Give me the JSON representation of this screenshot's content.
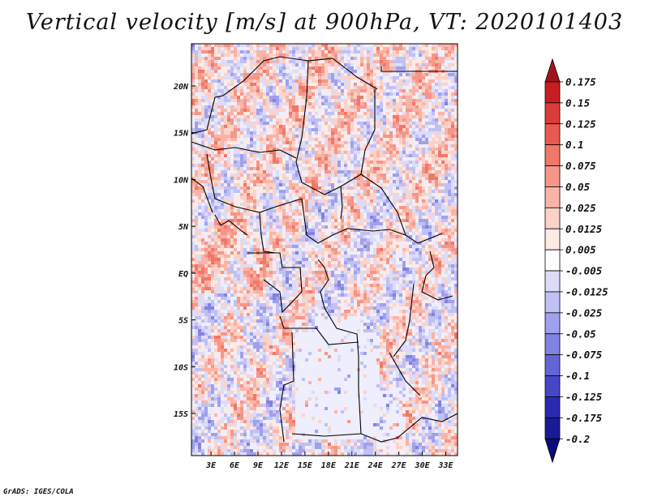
{
  "chart_data": {
    "type": "heatmap",
    "title": "Vertical velocity [m/s] at 900hPa, VT: 2020101403",
    "variable": "Vertical velocity",
    "units": "m/s",
    "level": "900hPa",
    "valid_time": "2020101403",
    "x_ticks": [
      "3E",
      "6E",
      "9E",
      "12E",
      "15E",
      "18E",
      "21E",
      "24E",
      "27E",
      "30E",
      "33E"
    ],
    "x_tick_values": [
      3,
      6,
      9,
      12,
      15,
      18,
      21,
      24,
      27,
      30,
      33
    ],
    "y_ticks": [
      "20N",
      "15N",
      "10N",
      "5N",
      "EQ",
      "5S",
      "10S",
      "15S"
    ],
    "y_tick_values": [
      20,
      15,
      10,
      5,
      0,
      -5,
      -10,
      -15
    ],
    "xlim": [
      0.5,
      34.5
    ],
    "ylim": [
      -19.5,
      24.5
    ],
    "colorbar": {
      "labels": [
        "0.175",
        "0.15",
        "0.125",
        "0.1",
        "0.075",
        "0.05",
        "0.025",
        "0.0125",
        "0.005",
        "-0.005",
        "-0.0125",
        "-0.025",
        "-0.05",
        "-0.075",
        "-0.1",
        "-0.125",
        "-0.175",
        "-0.2"
      ],
      "colors": [
        "#a0141e",
        "#c81e22",
        "#dc3c37",
        "#e85a4f",
        "#f07869",
        "#f59688",
        "#f9b4a8",
        "#fcd2c8",
        "#feeae4",
        "#ffffff",
        "#dcdcf8",
        "#c0c0f4",
        "#a0a0ec",
        "#8282e2",
        "#6464d6",
        "#4646c6",
        "#2a2ab0",
        "#1a1a94",
        "#0c0c78"
      ]
    }
  },
  "credit": "GrADS: IGES/COLA"
}
